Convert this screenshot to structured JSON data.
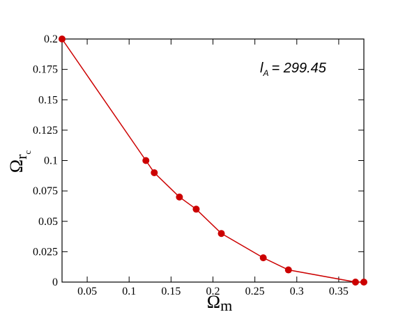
{
  "chart_data": {
    "type": "line",
    "xlabel": {
      "symbol": "Ω",
      "subscript": "m"
    },
    "ylabel": {
      "symbol": "Ω",
      "subscript": "r",
      "subsubscript": "c"
    },
    "annotation": {
      "symbol": "l",
      "subscript": "A",
      "text": "= 299.45"
    },
    "x": [
      0.02,
      0.12,
      0.13,
      0.16,
      0.18,
      0.21,
      0.26,
      0.29,
      0.37,
      0.38
    ],
    "series": [
      {
        "color": "#cc0000",
        "values": [
          0.2,
          0.1,
          0.09,
          0.07,
          0.06,
          0.04,
          0.02,
          0.01,
          0,
          0
        ]
      }
    ],
    "xlim": [
      0.02,
      0.38
    ],
    "ylim": [
      0,
      0.2
    ],
    "xticks": [
      0.05,
      0.1,
      0.15,
      0.2,
      0.25,
      0.3,
      0.35
    ],
    "yticks": [
      0,
      0.025,
      0.05,
      0.075,
      0.1,
      0.125,
      0.15,
      0.175,
      0.2
    ]
  }
}
